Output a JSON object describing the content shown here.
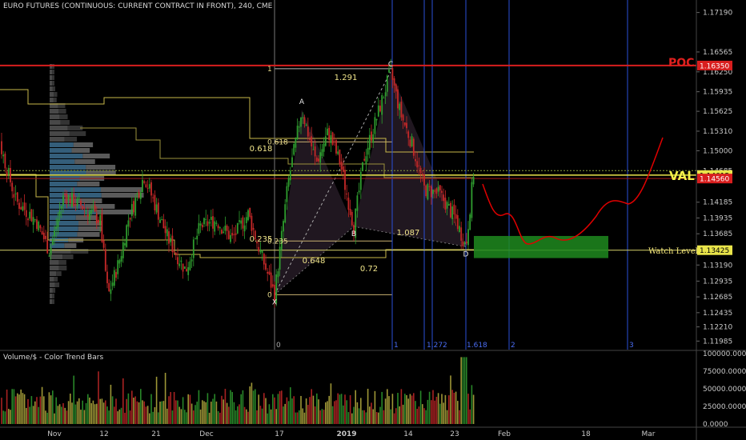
{
  "header": {
    "title": "EURO FUTURES (CONTINUOUS: CURRENT CONTRACT IN FRONT), 240, CME"
  },
  "volume_panel": {
    "title": "Volume/$ - Color Trend Bars"
  },
  "annotations": {
    "poc": "POC",
    "val": "VAL",
    "watch_level": "Watch Level"
  },
  "colors": {
    "background": "#000000",
    "up_bar": "#2f9e2f",
    "down_bar": "#c62828",
    "volume_yellow": "#b8b040",
    "poc_line": "#d81e1e",
    "val_line": "#e9e44a",
    "fib_time": "#2a4fd8",
    "projection": "#e00000",
    "watch_zone": "#1f8a1f",
    "pattern_fill": "#3a2a3a"
  },
  "chart_data": {
    "type": "candlestick",
    "price_axis": {
      "ylim": [
        1.1185,
        1.1735
      ],
      "ticks": [
        "1.17190",
        "1.16565",
        "1.16250",
        "1.15935",
        "1.15625",
        "1.15310",
        "1.15000",
        "1.14685",
        "1.14185",
        "1.13935",
        "1.13685",
        "1.13190",
        "1.12935",
        "1.12685",
        "1.12435",
        "1.12210",
        "1.11985"
      ],
      "highlighted": [
        {
          "label": "1.16350",
          "value": 1.1635,
          "color": "#d81e1e"
        },
        {
          "label": "1.14615",
          "value": 1.14615,
          "color": "#e9e44a"
        },
        {
          "label": "1.14560",
          "value": 1.1456,
          "color": "#d81e1e"
        },
        {
          "label": "1.13425",
          "value": 1.13425,
          "color": "#e9e44a"
        }
      ]
    },
    "date_axis": {
      "ticks": [
        "Nov",
        "12",
        "21",
        "Dec",
        "17",
        "2019",
        "14",
        "23",
        "Feb",
        "18",
        "Mar"
      ]
    },
    "volume_axis": {
      "ticks": [
        "100000.0000",
        "75000.0000",
        "50000.0000",
        "25000.0000",
        "0.0000"
      ],
      "ylim": [
        0,
        100000
      ]
    },
    "harmonic_pattern": {
      "points": [
        {
          "name": "X",
          "value": 1.1272
        },
        {
          "name": "A",
          "value": 1.1565
        },
        {
          "name": "B",
          "value": 1.138
        },
        {
          "name": "C",
          "value": 1.1625
        },
        {
          "name": "D",
          "value": 1.1348
        }
      ],
      "ratios": [
        "1.291",
        "0.618",
        "0.235",
        "0.648",
        "0.72",
        "1.087"
      ]
    },
    "fib_retracement": {
      "levels": [
        "1",
        "0.618",
        "0.235",
        "0"
      ]
    },
    "fib_time_zones": {
      "levels": [
        "0",
        "1",
        "1.272",
        "1.618",
        "2",
        "3"
      ]
    }
  }
}
